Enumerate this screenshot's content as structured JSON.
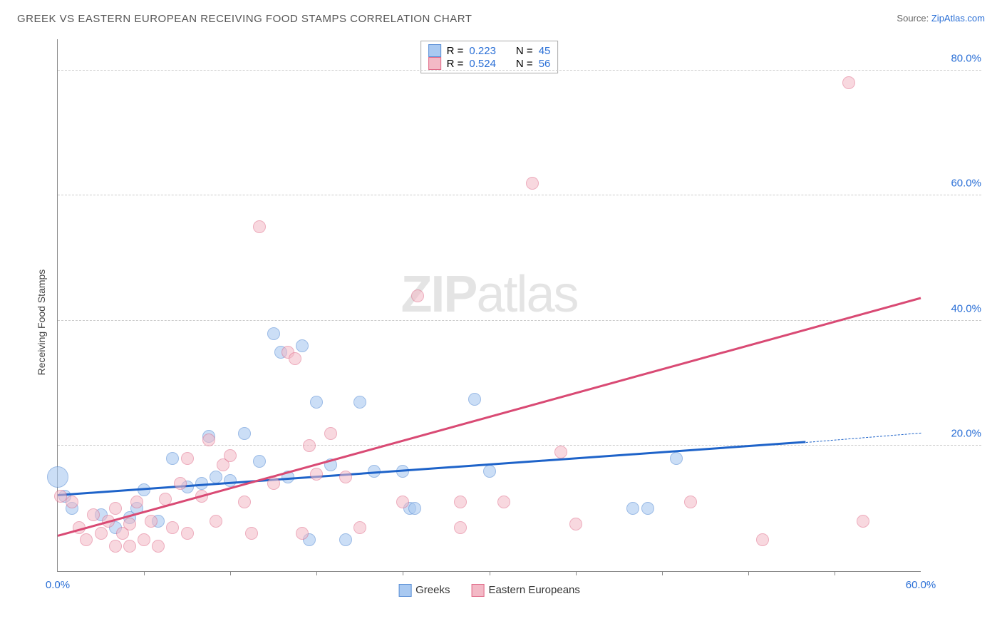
{
  "title": "GREEK VS EASTERN EUROPEAN RECEIVING FOOD STAMPS CORRELATION CHART",
  "source_label": "Source:",
  "source_name": "ZipAtlas.com",
  "watermark_a": "ZIP",
  "watermark_b": "atlas",
  "chart": {
    "type": "scatter",
    "ylabel": "Receiving Food Stamps",
    "background_color": "#ffffff",
    "grid_color": "#cccccc",
    "axis_color": "#888888",
    "tick_fontcolor": "#2a6fd6",
    "tick_fontsize": 15,
    "label_fontsize": 14,
    "xlim": [
      0,
      60
    ],
    "ylim": [
      0,
      85
    ],
    "xtick_labels": [
      {
        "x": 0,
        "label": "0.0%"
      },
      {
        "x": 60,
        "label": "60.0%"
      }
    ],
    "xtick_minors": [
      6,
      12,
      18,
      24,
      30,
      36,
      42,
      48,
      54
    ],
    "ytick_labels": [
      {
        "y": 20,
        "label": "20.0%"
      },
      {
        "y": 40,
        "label": "40.0%"
      },
      {
        "y": 60,
        "label": "60.0%"
      },
      {
        "y": 80,
        "label": "80.0%"
      }
    ],
    "series": [
      {
        "name": "Greeks",
        "fill": "#a9c9f1",
        "stroke": "#5a8fd6",
        "opacity": 0.6,
        "marker_radius": 9,
        "R": "0.223",
        "N": "45",
        "trend": {
          "x1": 0,
          "y1": 12.0,
          "x2": 52,
          "y2": 20.5,
          "color": "#1e63c9",
          "width": 2.5,
          "dash_to_x": 60,
          "dash_to_y": 22.0
        },
        "points": [
          {
            "x": 0,
            "y": 15,
            "r": 15
          },
          {
            "x": 0.5,
            "y": 12
          },
          {
            "x": 1,
            "y": 10
          },
          {
            "x": 3,
            "y": 9
          },
          {
            "x": 4,
            "y": 7
          },
          {
            "x": 5,
            "y": 8.5
          },
          {
            "x": 5.5,
            "y": 10
          },
          {
            "x": 6,
            "y": 13
          },
          {
            "x": 7,
            "y": 8
          },
          {
            "x": 8,
            "y": 18
          },
          {
            "x": 9,
            "y": 13.5
          },
          {
            "x": 10,
            "y": 14
          },
          {
            "x": 10.5,
            "y": 21.5
          },
          {
            "x": 11,
            "y": 15
          },
          {
            "x": 12,
            "y": 14.5
          },
          {
            "x": 13,
            "y": 22
          },
          {
            "x": 14,
            "y": 17.5
          },
          {
            "x": 15,
            "y": 38
          },
          {
            "x": 15.5,
            "y": 35
          },
          {
            "x": 16,
            "y": 15
          },
          {
            "x": 17,
            "y": 36
          },
          {
            "x": 17.5,
            "y": 5
          },
          {
            "x": 18,
            "y": 27
          },
          {
            "x": 19,
            "y": 17
          },
          {
            "x": 20,
            "y": 5
          },
          {
            "x": 21,
            "y": 27
          },
          {
            "x": 22,
            "y": 16
          },
          {
            "x": 24,
            "y": 16
          },
          {
            "x": 24.5,
            "y": 10
          },
          {
            "x": 24.8,
            "y": 10
          },
          {
            "x": 29,
            "y": 27.5
          },
          {
            "x": 30,
            "y": 16
          },
          {
            "x": 40,
            "y": 10
          },
          {
            "x": 41,
            "y": 10
          },
          {
            "x": 43,
            "y": 18
          }
        ]
      },
      {
        "name": "Eastern Europeans",
        "fill": "#f3b9c6",
        "stroke": "#e06a88",
        "opacity": 0.55,
        "marker_radius": 9,
        "R": "0.524",
        "N": "56",
        "trend": {
          "x1": 0,
          "y1": 5.5,
          "x2": 60,
          "y2": 43.5,
          "color": "#d94a74",
          "width": 2.5
        },
        "points": [
          {
            "x": 0.2,
            "y": 12
          },
          {
            "x": 1,
            "y": 11
          },
          {
            "x": 1.5,
            "y": 7
          },
          {
            "x": 2,
            "y": 5
          },
          {
            "x": 2.5,
            "y": 9
          },
          {
            "x": 3,
            "y": 6
          },
          {
            "x": 3.5,
            "y": 8
          },
          {
            "x": 4,
            "y": 4
          },
          {
            "x": 4,
            "y": 10
          },
          {
            "x": 4.5,
            "y": 6
          },
          {
            "x": 5,
            "y": 4
          },
          {
            "x": 5,
            "y": 7.5
          },
          {
            "x": 5.5,
            "y": 11
          },
          {
            "x": 6,
            "y": 5
          },
          {
            "x": 6.5,
            "y": 8
          },
          {
            "x": 7,
            "y": 4
          },
          {
            "x": 7.5,
            "y": 11.5
          },
          {
            "x": 8,
            "y": 7
          },
          {
            "x": 8.5,
            "y": 14
          },
          {
            "x": 9,
            "y": 6
          },
          {
            "x": 9,
            "y": 18
          },
          {
            "x": 10,
            "y": 12
          },
          {
            "x": 10.5,
            "y": 21
          },
          {
            "x": 11,
            "y": 8
          },
          {
            "x": 11.5,
            "y": 17
          },
          {
            "x": 12,
            "y": 18.5
          },
          {
            "x": 13,
            "y": 11
          },
          {
            "x": 13.5,
            "y": 6
          },
          {
            "x": 14,
            "y": 55
          },
          {
            "x": 15,
            "y": 14
          },
          {
            "x": 16,
            "y": 35
          },
          {
            "x": 16.5,
            "y": 34
          },
          {
            "x": 17,
            "y": 6
          },
          {
            "x": 17.5,
            "y": 20
          },
          {
            "x": 18,
            "y": 15.5
          },
          {
            "x": 19,
            "y": 22
          },
          {
            "x": 20,
            "y": 15
          },
          {
            "x": 21,
            "y": 7
          },
          {
            "x": 24,
            "y": 11
          },
          {
            "x": 25,
            "y": 44
          },
          {
            "x": 28,
            "y": 11
          },
          {
            "x": 28,
            "y": 7
          },
          {
            "x": 31,
            "y": 11
          },
          {
            "x": 33,
            "y": 62
          },
          {
            "x": 35,
            "y": 19
          },
          {
            "x": 36,
            "y": 7.5
          },
          {
            "x": 44,
            "y": 11
          },
          {
            "x": 49,
            "y": 5
          },
          {
            "x": 55,
            "y": 78
          },
          {
            "x": 56,
            "y": 8
          }
        ]
      }
    ],
    "legend_bottom": [
      {
        "label": "Greeks",
        "fill": "#a9c9f1",
        "stroke": "#5a8fd6"
      },
      {
        "label": "Eastern Europeans",
        "fill": "#f3b9c6",
        "stroke": "#e06a88"
      }
    ]
  }
}
